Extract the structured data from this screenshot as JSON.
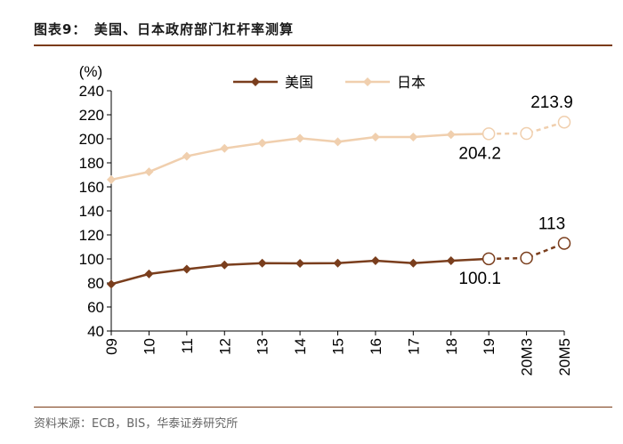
{
  "figure": {
    "title": "图表9：　美国、日本政府部门杠杆率测算",
    "source": "资料来源：ECB，BIS，华泰证券研究所"
  },
  "colors": {
    "us": "#7a3e1d",
    "japan": "#f0cfae",
    "axis": "#000000",
    "rule": "#7b3b16"
  },
  "chart_data": {
    "type": "line",
    "title": "美国、日本政府部门杠杆率测算",
    "xlabel": "",
    "ylabel": "(%)",
    "ylim": [
      40,
      240
    ],
    "yticks": [
      40,
      60,
      80,
      100,
      120,
      140,
      160,
      180,
      200,
      220,
      240
    ],
    "categories": [
      "09",
      "10",
      "11",
      "12",
      "13",
      "14",
      "15",
      "16",
      "17",
      "18",
      "19",
      "20M3",
      "20M5"
    ],
    "legend_position": "top-center",
    "series": [
      {
        "name": "美国",
        "values": [
          79,
          87.5,
          91.5,
          95,
          96.5,
          96.3,
          96.5,
          98.5,
          96.5,
          98.5,
          100.1,
          100.7,
          113
        ],
        "estimated_from_index": 10,
        "labels": [
          {
            "index": 10,
            "text": "100.1",
            "position": "below"
          },
          {
            "index": 12,
            "text": "113",
            "position": "above"
          }
        ]
      },
      {
        "name": "日本",
        "values": [
          166,
          172.5,
          185.5,
          192,
          196.5,
          200.5,
          197.5,
          201.5,
          201.5,
          203.5,
          204.2,
          204.4,
          213.9
        ],
        "estimated_from_index": 10,
        "labels": [
          {
            "index": 10,
            "text": "204.2",
            "position": "below"
          },
          {
            "index": 12,
            "text": "213.9",
            "position": "above"
          }
        ]
      }
    ]
  }
}
